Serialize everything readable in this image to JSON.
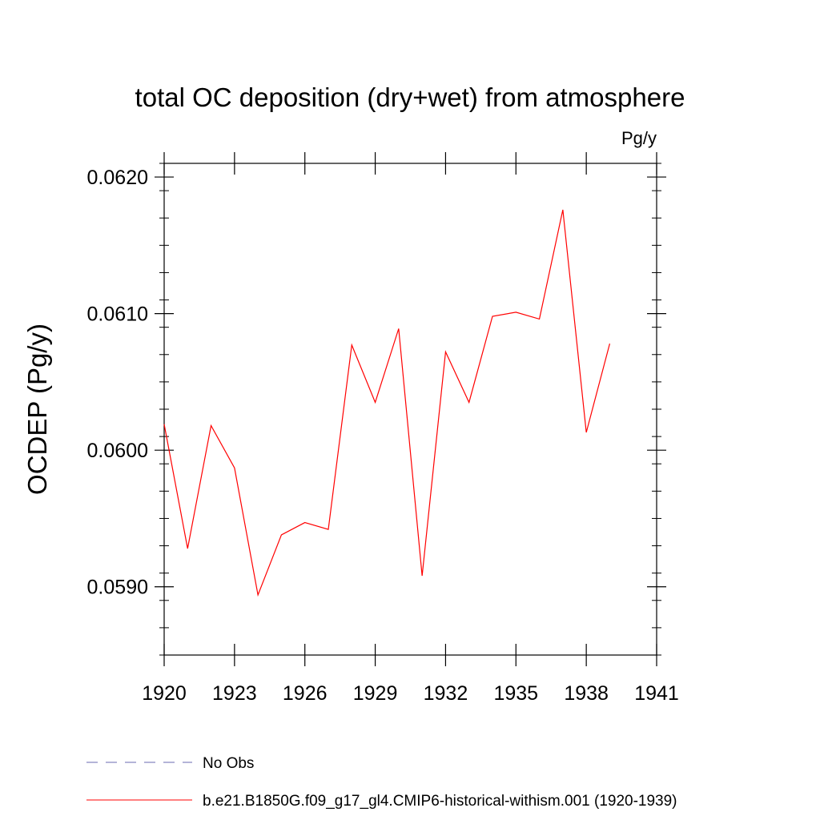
{
  "chart_data": {
    "type": "line",
    "title": "total OC deposition (dry+wet) from atmosphere",
    "units": "Pg/y",
    "xlabel": "",
    "ylabel": "OCDEP  (Pg/y)",
    "xlim": [
      1920,
      1941
    ],
    "ylim": [
      0.0585,
      0.0621
    ],
    "x_ticks": [
      "1920",
      "1923",
      "1926",
      "1929",
      "1932",
      "1935",
      "1938",
      "1941"
    ],
    "y_ticks": [
      "0.0590",
      "0.0600",
      "0.0610",
      "0.0620"
    ],
    "grid": false,
    "legend_position": "bottom",
    "series": [
      {
        "name": "No Obs",
        "color": "#6a6ab0",
        "dash": "dashed",
        "x": [],
        "values": []
      },
      {
        "name": "b.e21.B1850G.f09_g17_gl4.CMIP6-historical-withism.001 (1920-1939)",
        "color": "#ff0000",
        "dash": "solid",
        "x": [
          1920,
          1921,
          1922,
          1923,
          1924,
          1925,
          1926,
          1927,
          1928,
          1929,
          1930,
          1931,
          1932,
          1933,
          1934,
          1935,
          1936,
          1937,
          1938,
          1939
        ],
        "values": [
          0.06019,
          0.05928,
          0.06018,
          0.05987,
          0.05894,
          0.05938,
          0.05947,
          0.05942,
          0.06077,
          0.06035,
          0.06089,
          0.05908,
          0.06072,
          0.06035,
          0.06098,
          0.06101,
          0.06096,
          0.06176,
          0.06013,
          0.06078
        ]
      }
    ]
  }
}
